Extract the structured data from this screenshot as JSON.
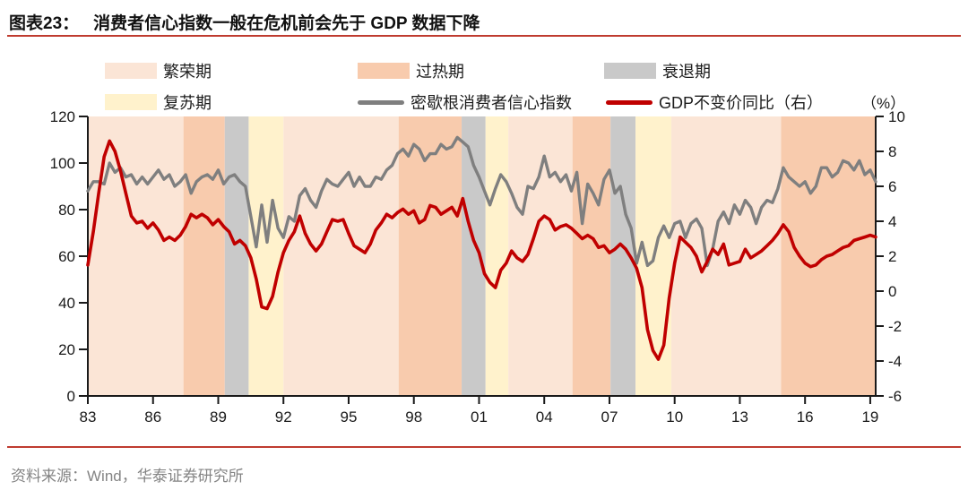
{
  "header": {
    "label": "图表23：",
    "title": "消费者信心指数一般在危机前会先于 GDP 数据下降"
  },
  "legend": {
    "items": [
      {
        "kind": "prosperity",
        "label": "繁荣期"
      },
      {
        "kind": "overheat",
        "label": "过热期"
      },
      {
        "kind": "recession",
        "label": "衰退期"
      },
      {
        "kind": "recovery",
        "label": "复苏期"
      },
      {
        "kind": "sentiment-line",
        "label": "密歇根消费者信心指数"
      },
      {
        "kind": "gdp-line",
        "label": "GDP不变价同比（右）"
      }
    ],
    "unit": "（%）"
  },
  "footer": {
    "source": "资料来源：Wind，华泰证券研究所"
  },
  "colors": {
    "accent_rule": "#bf3b2f",
    "axis": "#1a1a1a",
    "prosperity": "#fbe5d6",
    "overheat": "#f8cbad",
    "recession": "#c9c9c9",
    "recovery": "#fff2cc",
    "sentiment": "#7f7f7f",
    "gdp": "#c00000"
  },
  "chart_data": {
    "type": "line",
    "title": "消费者信心指数一般在危机前会先于 GDP 数据下降",
    "x_range": [
      1983,
      2019.25
    ],
    "x_tick_years": [
      1983,
      1986,
      1989,
      1992,
      1995,
      1998,
      2001,
      2004,
      2007,
      2010,
      2013,
      2016,
      2019
    ],
    "x_tick_labels": [
      "83",
      "86",
      "89",
      "92",
      "95",
      "98",
      "01",
      "04",
      "07",
      "10",
      "13",
      "16",
      "19"
    ],
    "left_axis": {
      "min": 0,
      "max": 120,
      "ticks": [
        0,
        20,
        40,
        60,
        80,
        100,
        120
      ]
    },
    "right_axis": {
      "min": -6,
      "max": 10,
      "ticks": [
        -6,
        -4,
        -2,
        0,
        2,
        4,
        6,
        8,
        10
      ],
      "unit": "（%）"
    },
    "grid": false,
    "legend_position": "top",
    "bands": [
      {
        "label": "繁荣期",
        "type": "prosperity",
        "start": 1983.0,
        "end": 1987.4
      },
      {
        "label": "过热期",
        "type": "overheat",
        "start": 1987.4,
        "end": 1989.3
      },
      {
        "label": "衰退期",
        "type": "recession",
        "start": 1989.3,
        "end": 1990.4
      },
      {
        "label": "复苏期",
        "type": "recovery",
        "start": 1990.4,
        "end": 1992.0
      },
      {
        "label": "繁荣期",
        "type": "prosperity",
        "start": 1992.0,
        "end": 1997.3
      },
      {
        "label": "过热期",
        "type": "overheat",
        "start": 1997.3,
        "end": 2000.2
      },
      {
        "label": "衰退期",
        "type": "recession",
        "start": 2000.2,
        "end": 2001.3
      },
      {
        "label": "复苏期",
        "type": "recovery",
        "start": 2001.3,
        "end": 2002.35
      },
      {
        "label": "繁荣期",
        "type": "prosperity",
        "start": 2002.35,
        "end": 2005.3
      },
      {
        "label": "过热期",
        "type": "overheat",
        "start": 2005.3,
        "end": 2007.05
      },
      {
        "label": "衰退期",
        "type": "recession",
        "start": 2007.05,
        "end": 2008.2
      },
      {
        "label": "复苏期",
        "type": "recovery",
        "start": 2008.2,
        "end": 2009.85
      },
      {
        "label": "繁荣期",
        "type": "prosperity",
        "start": 2009.85,
        "end": 2014.9
      },
      {
        "label": "过热期",
        "type": "overheat",
        "start": 2014.9,
        "end": 2019.25
      }
    ],
    "series": [
      {
        "name": "密歇根消费者信心指数",
        "axis": "left",
        "color": "#7f7f7f",
        "x_start": 1983,
        "x_step": 0.25,
        "values": [
          88,
          92,
          92,
          91,
          100,
          96,
          98,
          94,
          95,
          91,
          94,
          91,
          94,
          97,
          93,
          95,
          90,
          92,
          95,
          87,
          92,
          94,
          95,
          93,
          97,
          91,
          94,
          95,
          92,
          90,
          77,
          64,
          82,
          66,
          84,
          72,
          68,
          77,
          75,
          86,
          89,
          84,
          81,
          88,
          93,
          91,
          90,
          93,
          96,
          90,
          94,
          90,
          90,
          94,
          93,
          97,
          99,
          104,
          106,
          103,
          108,
          106,
          101,
          104,
          104,
          108,
          106,
          107,
          111,
          109,
          107,
          99,
          94,
          88,
          82,
          89,
          95,
          92,
          87,
          81,
          78,
          90,
          89,
          94,
          103,
          94,
          96,
          92,
          95,
          88,
          96,
          74,
          91,
          87,
          82,
          93,
          97,
          87,
          90,
          78,
          72,
          57,
          66,
          56,
          58,
          68,
          73,
          68,
          74,
          75,
          68,
          74,
          76,
          72,
          56,
          63,
          75,
          79,
          74,
          82,
          78,
          84,
          81,
          74,
          81,
          84,
          83,
          89,
          98,
          94,
          92,
          90,
          92,
          87,
          90,
          98,
          98,
          94,
          96,
          101,
          100,
          97,
          101,
          95,
          97,
          92
        ]
      },
      {
        "name": "GDP不变价同比（右）",
        "axis": "right",
        "color": "#c00000",
        "x_start": 1983,
        "x_step": 0.25,
        "values": [
          1.5,
          3.4,
          5.6,
          7.7,
          8.6,
          8.0,
          6.9,
          5.6,
          4.3,
          3.9,
          4.0,
          3.6,
          3.9,
          3.5,
          2.9,
          3.1,
          2.9,
          3.2,
          3.7,
          4.4,
          4.2,
          4.4,
          4.2,
          3.8,
          4.1,
          3.7,
          3.4,
          2.7,
          2.9,
          2.6,
          1.9,
          0.7,
          -0.9,
          -1.0,
          -0.3,
          1.1,
          2.2,
          2.9,
          3.4,
          4.3,
          3.3,
          2.7,
          2.3,
          2.7,
          3.4,
          4.1,
          4.0,
          4.1,
          3.3,
          2.6,
          2.4,
          2.2,
          2.7,
          3.5,
          3.9,
          4.4,
          4.2,
          4.5,
          4.7,
          4.4,
          4.6,
          3.9,
          4.1,
          4.9,
          4.8,
          4.4,
          4.6,
          4.8,
          4.3,
          5.3,
          4.0,
          2.9,
          2.2,
          1.0,
          0.5,
          0.2,
          1.2,
          1.6,
          2.3,
          1.9,
          1.7,
          2.1,
          3.0,
          4.0,
          4.3,
          4.1,
          3.5,
          3.7,
          3.8,
          3.6,
          3.3,
          3.0,
          3.2,
          3.0,
          2.5,
          2.6,
          2.2,
          2.4,
          2.7,
          2.4,
          1.9,
          1.3,
          0.2,
          -2.2,
          -3.4,
          -3.9,
          -3.1,
          -0.4,
          1.6,
          3.1,
          2.8,
          2.5,
          2.0,
          1.1,
          1.7,
          2.4,
          2.1,
          2.7,
          1.5,
          1.6,
          1.7,
          2.4,
          1.9,
          2.1,
          2.3,
          2.6,
          2.9,
          3.3,
          3.8,
          3.4,
          2.5,
          2.0,
          1.6,
          1.4,
          1.5,
          1.8,
          2.0,
          2.1,
          2.3,
          2.5,
          2.6,
          2.9,
          3.0,
          3.1,
          3.2,
          3.1
        ]
      }
    ]
  }
}
